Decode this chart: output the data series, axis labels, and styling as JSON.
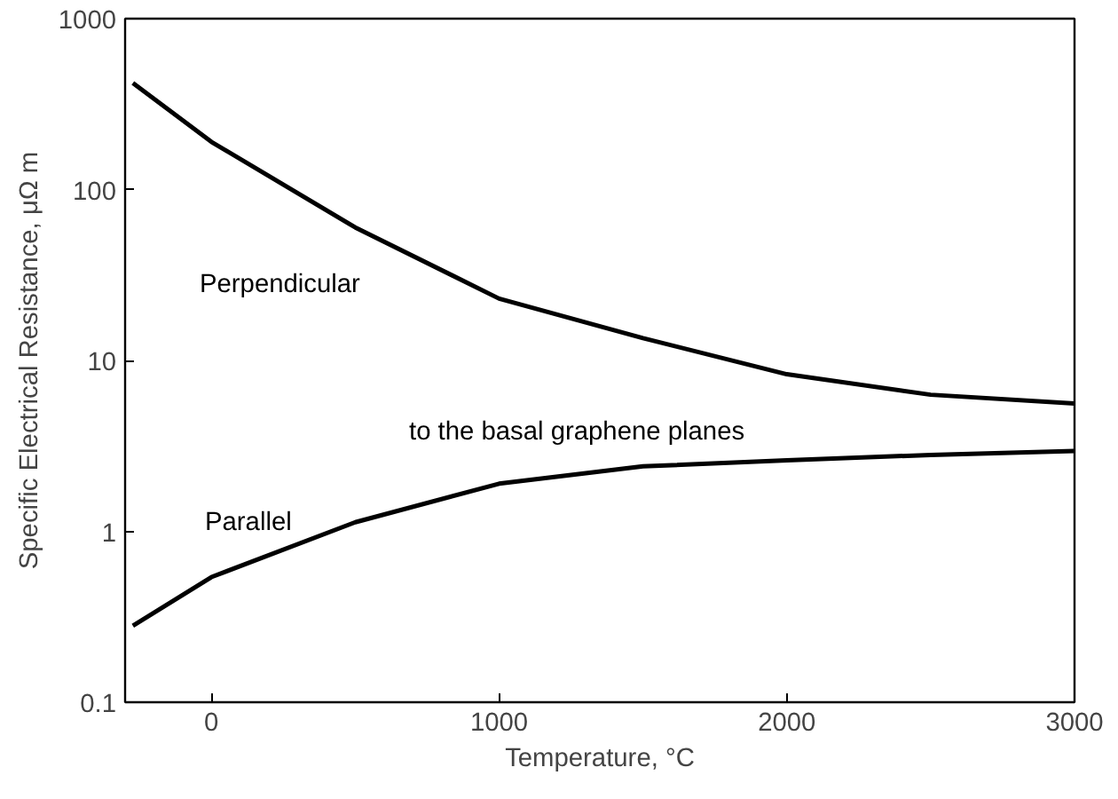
{
  "chart_data": {
    "type": "line",
    "xlabel": "Temperature, °C",
    "ylabel": "Specific Electrical Resistance, μΩ m",
    "x": [
      -273,
      0,
      500,
      1000,
      1500,
      2000,
      2500,
      3000
    ],
    "series": [
      {
        "color": "#000000",
        "values": [
          420,
          190,
          60,
          23,
          13.5,
          8.3,
          6.3,
          5.6
        ]
      },
      {
        "color": "#000000",
        "values": [
          0.28,
          0.54,
          1.13,
          1.9,
          2.4,
          2.6,
          2.8,
          2.95
        ]
      }
    ],
    "annotations": [
      "Perpendicular",
      "to the basal graphene planes",
      "Parallel"
    ],
    "log": "y",
    "xlim": [
      -300,
      3000
    ],
    "ylim": [
      0.1,
      1000
    ],
    "xticks": [
      0,
      1000,
      2000,
      3000
    ],
    "yticks": [
      0.1,
      1,
      10,
      100,
      1000
    ],
    "grid": false,
    "marker": "none",
    "line_style": "solid"
  }
}
